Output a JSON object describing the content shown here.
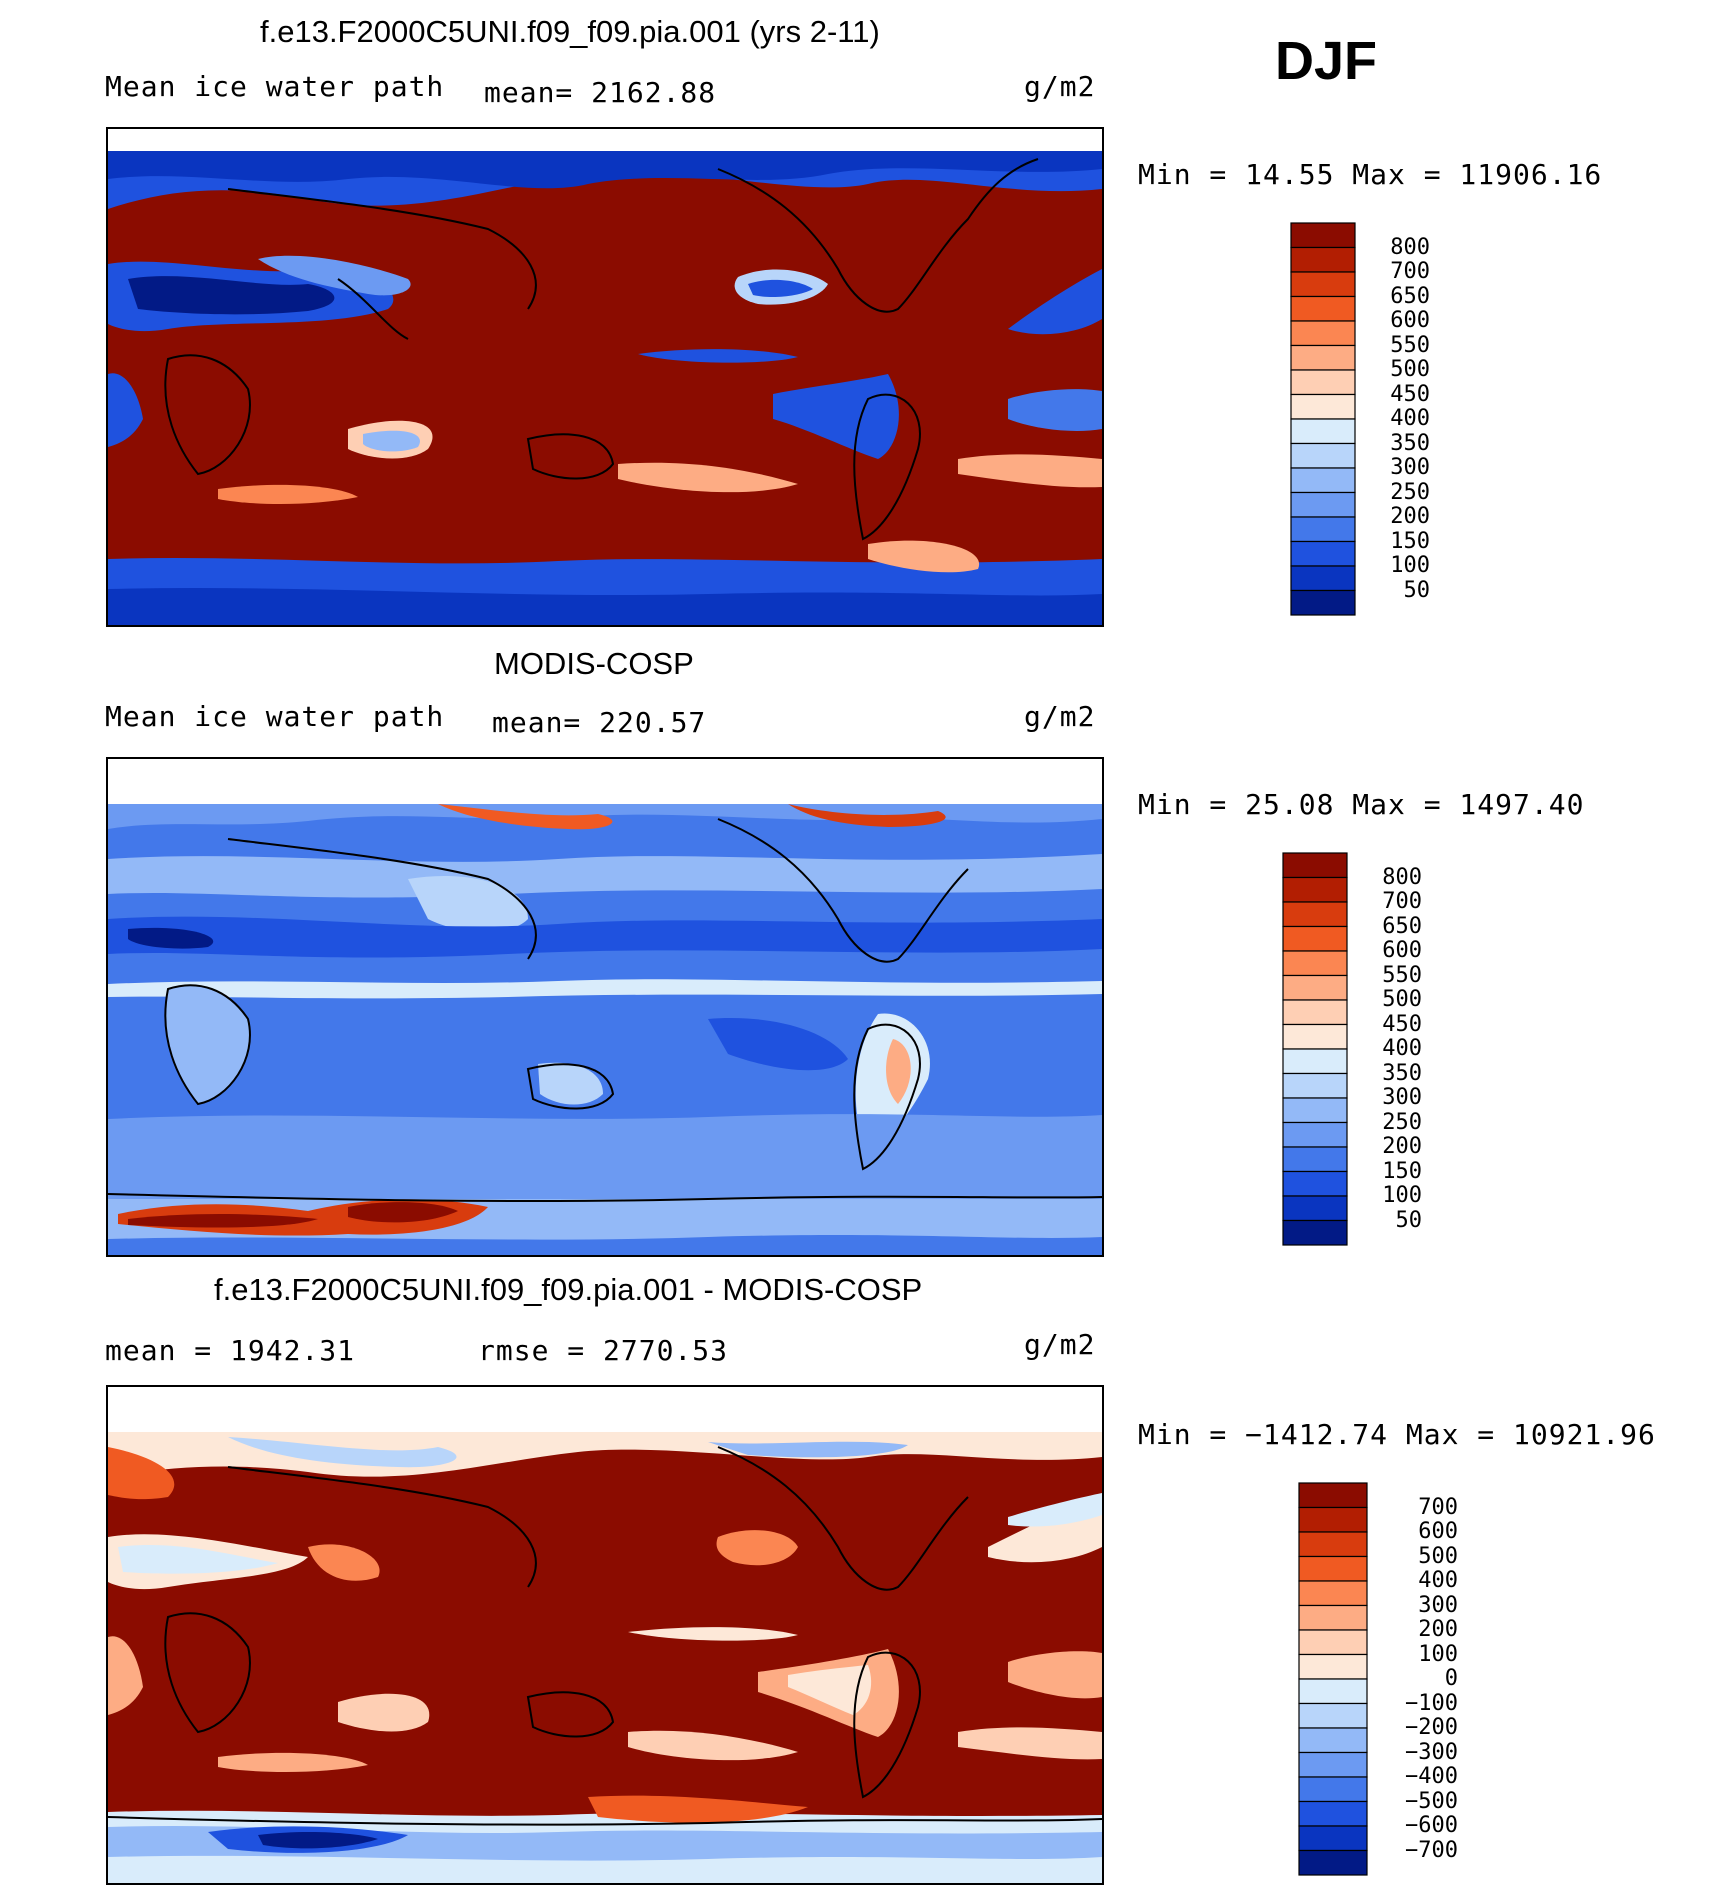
{
  "season": "DJF",
  "units": "g/m2",
  "panels": [
    {
      "id": "model",
      "title": "f.e13.F2000C5UNI.f09_f09.pia.001 (yrs 2-11)",
      "left_label": "Mean ice water path",
      "center_label": "mean= 2162.88",
      "right_label": "g/m2",
      "minmax": "Min =   14.55 Max = 11906.16",
      "scale": {
        "labels": [
          "800",
          "700",
          "650",
          "600",
          "550",
          "500",
          "450",
          "400",
          "350",
          "300",
          "250",
          "200",
          "150",
          "100",
          "50"
        ],
        "colors": [
          "#8b0c00",
          "#b21e02",
          "#d83c0e",
          "#f05a22",
          "#fb8652",
          "#fdac84",
          "#fecfb4",
          "#fde8d8",
          "#d9ecfb",
          "#b8d5fa",
          "#93b9f7",
          "#6c9af2",
          "#4378ea",
          "#1f52df",
          "#0a35c0",
          "#021a86"
        ]
      },
      "chart_data": {
        "type": "heatmap",
        "title": "f.e13.F2000C5UNI.f09_f09.pia.001 (yrs 2-11)",
        "variable": "Mean ice water path",
        "units": "g/m2",
        "mean": 2162.88,
        "min": 14.55,
        "max": 11906.16,
        "contour_levels": [
          50,
          100,
          150,
          200,
          250,
          300,
          350,
          400,
          450,
          500,
          550,
          600,
          650,
          700,
          800
        ]
      }
    },
    {
      "id": "obs",
      "title": "MODIS-COSP",
      "left_label": "Mean ice water path",
      "center_label": "mean= 220.57",
      "right_label": "g/m2",
      "minmax": "Min =   25.08 Max =  1497.40",
      "scale": {
        "labels": [
          "800",
          "700",
          "650",
          "600",
          "550",
          "500",
          "450",
          "400",
          "350",
          "300",
          "250",
          "200",
          "150",
          "100",
          "50"
        ],
        "colors": [
          "#8b0c00",
          "#b21e02",
          "#d83c0e",
          "#f05a22",
          "#fb8652",
          "#fdac84",
          "#fecfb4",
          "#fde8d8",
          "#d9ecfb",
          "#b8d5fa",
          "#93b9f7",
          "#6c9af2",
          "#4378ea",
          "#1f52df",
          "#0a35c0",
          "#021a86"
        ]
      },
      "chart_data": {
        "type": "heatmap",
        "title": "MODIS-COSP",
        "variable": "Mean ice water path",
        "units": "g/m2",
        "mean": 220.57,
        "min": 25.08,
        "max": 1497.4,
        "contour_levels": [
          50,
          100,
          150,
          200,
          250,
          300,
          350,
          400,
          450,
          500,
          550,
          600,
          650,
          700,
          800
        ]
      }
    },
    {
      "id": "diff",
      "title": "f.e13.F2000C5UNI.f09_f09.pia.001 - MODIS-COSP",
      "left_label": "mean =  1942.31",
      "center_label": "rmse =  2770.53",
      "right_label": "g/m2",
      "minmax": "Min = −1412.74 Max = 10921.96",
      "scale": {
        "labels": [
          "700",
          "600",
          "500",
          "400",
          "300",
          "200",
          "100",
          "0",
          "−100",
          "−200",
          "−300",
          "−400",
          "−500",
          "−600",
          "−700"
        ],
        "colors": [
          "#8b0c00",
          "#b21e02",
          "#d83c0e",
          "#f05a22",
          "#fb8652",
          "#fdac84",
          "#fecfb4",
          "#fde8d8",
          "#d9ecfb",
          "#b8d5fa",
          "#93b9f7",
          "#6c9af2",
          "#4378ea",
          "#1f52df",
          "#0a35c0",
          "#021a86"
        ]
      },
      "chart_data": {
        "type": "heatmap",
        "title": "f.e13.F2000C5UNI.f09_f09.pia.001 - MODIS-COSP",
        "units": "g/m2",
        "mean": 1942.31,
        "rmse": 2770.53,
        "min": -1412.74,
        "max": 10921.96,
        "contour_levels": [
          -700,
          -600,
          -500,
          -400,
          -300,
          -200,
          -100,
          0,
          100,
          200,
          300,
          400,
          500,
          600,
          700
        ]
      }
    }
  ]
}
